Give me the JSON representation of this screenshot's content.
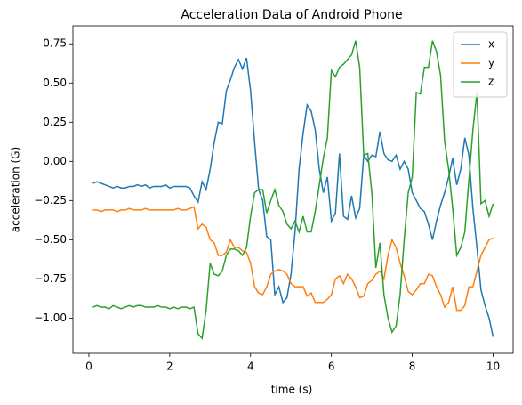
{
  "chart_data": {
    "type": "line",
    "title": "Acceleration Data of Android Phone",
    "xlabel": "time (s)",
    "ylabel": "acceleration (G)",
    "x": [
      0.1,
      0.2,
      0.3,
      0.4,
      0.5,
      0.6,
      0.7,
      0.8,
      0.9,
      1.0,
      1.1,
      1.2,
      1.3,
      1.4,
      1.5,
      1.6,
      1.7,
      1.8,
      1.9,
      2.0,
      2.1,
      2.2,
      2.3,
      2.4,
      2.5,
      2.6,
      2.7,
      2.8,
      2.9,
      3.0,
      3.1,
      3.2,
      3.3,
      3.4,
      3.5,
      3.6,
      3.7,
      3.8,
      3.9,
      4.0,
      4.1,
      4.2,
      4.3,
      4.4,
      4.5,
      4.6,
      4.7,
      4.8,
      4.9,
      5.0,
      5.1,
      5.2,
      5.3,
      5.4,
      5.5,
      5.6,
      5.7,
      5.8,
      5.9,
      6.0,
      6.1,
      6.2,
      6.3,
      6.4,
      6.5,
      6.6,
      6.7,
      6.8,
      6.9,
      7.0,
      7.1,
      7.2,
      7.3,
      7.4,
      7.5,
      7.6,
      7.7,
      7.8,
      7.9,
      8.0,
      8.1,
      8.2,
      8.3,
      8.4,
      8.5,
      8.6,
      8.7,
      8.8,
      8.9,
      9.0,
      9.1,
      9.2,
      9.3,
      9.4,
      9.5,
      9.6,
      9.7,
      9.8,
      9.9,
      10.0
    ],
    "series": [
      {
        "name": "x",
        "color": "#1f77b4",
        "values": [
          -0.14,
          -0.13,
          -0.14,
          -0.15,
          -0.16,
          -0.17,
          -0.16,
          -0.17,
          -0.17,
          -0.16,
          -0.16,
          -0.15,
          -0.16,
          -0.15,
          -0.17,
          -0.16,
          -0.16,
          -0.16,
          -0.15,
          -0.17,
          -0.16,
          -0.16,
          -0.16,
          -0.16,
          -0.17,
          -0.22,
          -0.26,
          -0.13,
          -0.18,
          -0.05,
          0.12,
          0.25,
          0.24,
          0.45,
          0.52,
          0.6,
          0.65,
          0.59,
          0.66,
          0.45,
          0.12,
          -0.18,
          -0.25,
          -0.48,
          -0.5,
          -0.85,
          -0.8,
          -0.9,
          -0.87,
          -0.72,
          -0.45,
          -0.05,
          0.18,
          0.36,
          0.32,
          0.2,
          -0.05,
          -0.2,
          -0.1,
          -0.38,
          -0.33,
          0.05,
          -0.35,
          -0.37,
          -0.22,
          -0.36,
          -0.3,
          0.04,
          0.0,
          0.04,
          0.03,
          0.19,
          0.05,
          0.01,
          0.0,
          0.04,
          -0.05,
          0.0,
          -0.05,
          -0.2,
          -0.25,
          -0.3,
          -0.32,
          -0.4,
          -0.5,
          -0.38,
          -0.28,
          -0.2,
          -0.1,
          0.02,
          -0.15,
          -0.05,
          0.15,
          0.04,
          -0.3,
          -0.55,
          -0.82,
          -0.92,
          -1.0,
          -1.12
        ]
      },
      {
        "name": "y",
        "color": "#ff7f0e",
        "values": [
          -0.31,
          -0.31,
          -0.32,
          -0.31,
          -0.31,
          -0.31,
          -0.32,
          -0.31,
          -0.31,
          -0.3,
          -0.31,
          -0.31,
          -0.31,
          -0.3,
          -0.31,
          -0.31,
          -0.31,
          -0.31,
          -0.31,
          -0.31,
          -0.31,
          -0.3,
          -0.31,
          -0.31,
          -0.3,
          -0.29,
          -0.43,
          -0.4,
          -0.42,
          -0.5,
          -0.52,
          -0.6,
          -0.6,
          -0.58,
          -0.5,
          -0.55,
          -0.55,
          -0.57,
          -0.58,
          -0.65,
          -0.8,
          -0.84,
          -0.85,
          -0.8,
          -0.72,
          -0.7,
          -0.69,
          -0.7,
          -0.72,
          -0.78,
          -0.8,
          -0.8,
          -0.8,
          -0.86,
          -0.84,
          -0.9,
          -0.9,
          -0.9,
          -0.88,
          -0.85,
          -0.75,
          -0.73,
          -0.78,
          -0.72,
          -0.75,
          -0.8,
          -0.87,
          -0.86,
          -0.78,
          -0.76,
          -0.72,
          -0.7,
          -0.75,
          -0.6,
          -0.5,
          -0.55,
          -0.65,
          -0.73,
          -0.83,
          -0.85,
          -0.82,
          -0.78,
          -0.78,
          -0.72,
          -0.73,
          -0.8,
          -0.85,
          -0.93,
          -0.9,
          -0.8,
          -0.95,
          -0.95,
          -0.92,
          -0.8,
          -0.8,
          -0.7,
          -0.6,
          -0.55,
          -0.5,
          -0.49
        ]
      },
      {
        "name": "z",
        "color": "#2ca02c",
        "values": [
          -0.93,
          -0.92,
          -0.93,
          -0.93,
          -0.94,
          -0.92,
          -0.93,
          -0.94,
          -0.93,
          -0.92,
          -0.93,
          -0.92,
          -0.92,
          -0.93,
          -0.93,
          -0.93,
          -0.92,
          -0.93,
          -0.93,
          -0.94,
          -0.93,
          -0.94,
          -0.93,
          -0.93,
          -0.94,
          -0.93,
          -1.1,
          -1.13,
          -0.95,
          -0.65,
          -0.72,
          -0.73,
          -0.7,
          -0.6,
          -0.56,
          -0.56,
          -0.57,
          -0.6,
          -0.55,
          -0.35,
          -0.2,
          -0.18,
          -0.18,
          -0.33,
          -0.25,
          -0.18,
          -0.28,
          -0.32,
          -0.4,
          -0.43,
          -0.38,
          -0.45,
          -0.35,
          -0.45,
          -0.45,
          -0.32,
          -0.15,
          0.02,
          0.15,
          0.58,
          0.54,
          0.6,
          0.62,
          0.65,
          0.68,
          0.77,
          0.6,
          0.04,
          0.05,
          -0.2,
          -0.68,
          -0.52,
          -0.85,
          -1.0,
          -1.09,
          -1.05,
          -0.85,
          -0.5,
          -0.2,
          -0.1,
          0.44,
          0.43,
          0.6,
          0.6,
          0.77,
          0.7,
          0.55,
          0.13,
          -0.05,
          -0.3,
          -0.6,
          -0.55,
          -0.45,
          -0.12,
          0.2,
          0.44,
          -0.27,
          -0.25,
          -0.35,
          -0.27
        ]
      }
    ],
    "xlim": [
      -0.395,
      10.495
    ],
    "ylim": [
      -1.225,
      0.865
    ],
    "xticks": [
      0,
      2,
      4,
      6,
      8,
      10
    ],
    "yticks": [
      {
        "value": -1,
        "label": "−1.00"
      },
      {
        "value": -0.75,
        "label": "−0.75"
      },
      {
        "value": -0.5,
        "label": "−0.50"
      },
      {
        "value": -0.25,
        "label": "−0.25"
      },
      {
        "value": 0,
        "label": "0.00"
      },
      0.25,
      {
        "value": 0.5,
        "label": "0.50"
      },
      0.75
    ],
    "grid": false,
    "legend": "upper right"
  }
}
